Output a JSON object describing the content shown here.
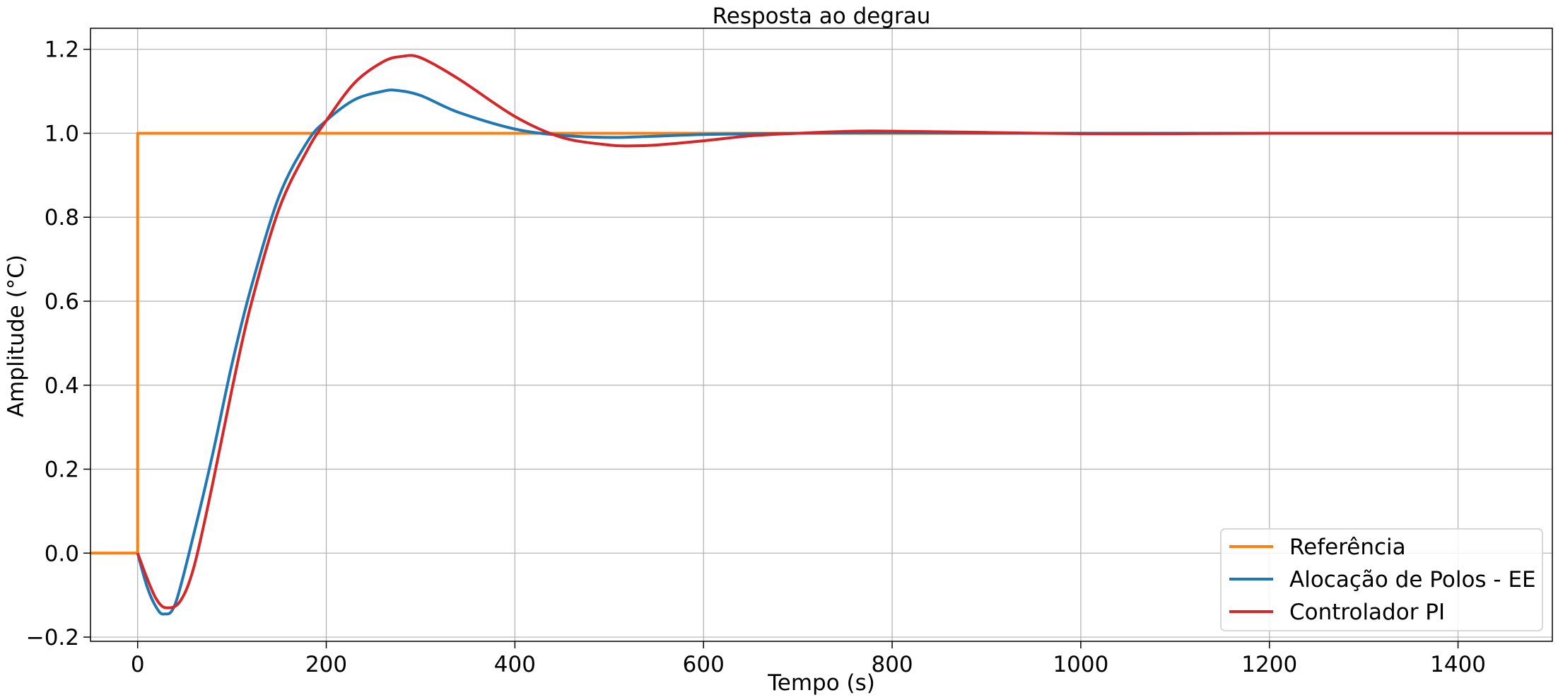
{
  "chart_data": {
    "type": "line",
    "title": "Resposta ao degrau",
    "xlabel": "Tempo (s)",
    "ylabel": "Amplitude (°C)",
    "xlim": [
      -50,
      1500
    ],
    "ylim": [
      -0.21,
      1.25
    ],
    "xticks": [
      0,
      200,
      400,
      600,
      800,
      1000,
      1200,
      1400
    ],
    "xtick_labels": [
      "0",
      "200",
      "400",
      "600",
      "800",
      "1000",
      "1200",
      "1400"
    ],
    "yticks": [
      -0.2,
      0.0,
      0.2,
      0.4,
      0.6,
      0.8,
      1.0,
      1.2
    ],
    "ytick_labels": [
      "−0.2",
      "0.0",
      "0.2",
      "0.4",
      "0.6",
      "0.8",
      "1.0",
      "1.2"
    ],
    "grid": true,
    "legend_position": "lower-right",
    "series": [
      {
        "name": "Referência",
        "color": "#ff7f0e",
        "x": [
          -50,
          0,
          0,
          1500
        ],
        "y": [
          0,
          0,
          1,
          1
        ]
      },
      {
        "name": "Alocação de Polos - EE",
        "color": "#1f77b4",
        "x": [
          0,
          10,
          20,
          28,
          40,
          60,
          80,
          100,
          120,
          150,
          180,
          200,
          230,
          260,
          275,
          300,
          340,
          400,
          450,
          500,
          550,
          600,
          700,
          800,
          900,
          1000,
          1200,
          1500
        ],
        "y": [
          0,
          -0.08,
          -0.13,
          -0.145,
          -0.12,
          0.05,
          0.24,
          0.45,
          0.63,
          0.85,
          0.98,
          1.03,
          1.08,
          1.1,
          1.102,
          1.09,
          1.05,
          1.01,
          0.995,
          0.99,
          0.993,
          0.997,
          1.0,
          1.001,
          1.0,
          1.0,
          1.0,
          1.0
        ]
      },
      {
        "name": "Controlador PI",
        "color": "#d62728",
        "x": [
          0,
          10,
          20,
          30,
          45,
          60,
          80,
          100,
          120,
          150,
          180,
          200,
          230,
          260,
          280,
          300,
          340,
          400,
          450,
          500,
          525,
          550,
          600,
          650,
          700,
          760,
          800,
          900,
          1000,
          1100,
          1200,
          1500
        ],
        "y": [
          0,
          -0.06,
          -0.11,
          -0.13,
          -0.115,
          -0.03,
          0.17,
          0.39,
          0.59,
          0.82,
          0.96,
          1.03,
          1.12,
          1.17,
          1.183,
          1.18,
          1.13,
          1.04,
          0.99,
          0.972,
          0.97,
          0.972,
          0.982,
          0.994,
          1.0,
          1.005,
          1.005,
          1.002,
          0.999,
          0.999,
          1.0,
          1.0
        ]
      }
    ]
  }
}
